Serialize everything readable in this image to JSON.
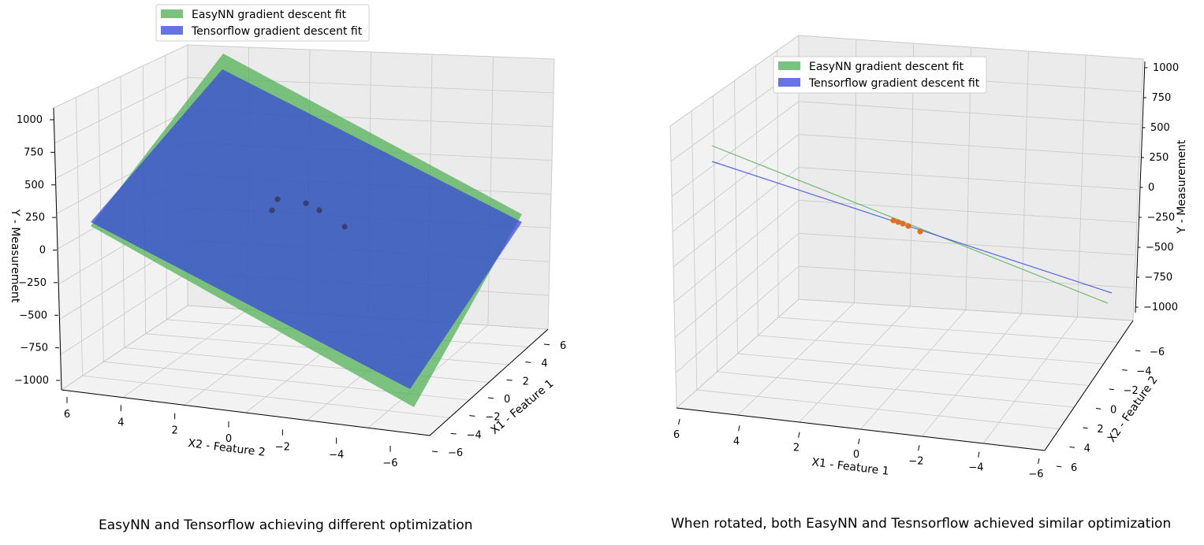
{
  "chart_data": [
    {
      "type": "surface3d",
      "title": "",
      "xlabel": "X1 - Feature 1",
      "ylabel": "X2 - Feature 2",
      "zlabel": "Y - Measurement",
      "xlim": [
        -6,
        6
      ],
      "ylim": [
        -6,
        6
      ],
      "zlim": [
        -1000,
        1000
      ],
      "x_ticks": [
        "6",
        "4",
        "2",
        "0",
        "−2",
        "−4",
        "−6"
      ],
      "y_ticks": [
        "6",
        "4",
        "2",
        "0",
        "−2",
        "−4",
        "−6"
      ],
      "z_ticks": [
        "1000",
        "750",
        "500",
        "250",
        "0",
        "−250",
        "−500",
        "−750",
        "−1000"
      ],
      "legend": {
        "position": "top-center",
        "entries": [
          "EasyNN gradient descent fit",
          "Tensorflow gradient descent fit"
        ]
      },
      "series": [
        {
          "name": "EasyNN gradient descent fit",
          "color": "#4caf50"
        },
        {
          "name": "Tensorflow gradient descent fit",
          "color": "#3344dd"
        }
      ],
      "points_color": "#333355",
      "caption": "EasyNN and Tensorflow achieving different optimization"
    },
    {
      "type": "surface3d",
      "title": "",
      "xlabel": "X1 - Feature 1",
      "ylabel": "X2 - Feature 2",
      "zlabel": "Y - Measurement",
      "xlim": [
        -6,
        6
      ],
      "ylim": [
        -6,
        6
      ],
      "zlim": [
        -1000,
        1000
      ],
      "x_ticks": [
        "6",
        "4",
        "2",
        "0",
        "−2",
        "−4",
        "−6"
      ],
      "y_ticks": [
        "−6",
        "−4",
        "−2",
        "0",
        "2",
        "4",
        "6"
      ],
      "z_ticks": [
        "1000",
        "750",
        "500",
        "250",
        "0",
        "−250",
        "−500",
        "−750",
        "−1000"
      ],
      "legend": {
        "position": "top-left",
        "entries": [
          "EasyNN gradient descent fit",
          "Tensorflow gradient descent fit"
        ]
      },
      "series": [
        {
          "name": "EasyNN gradient descent fit",
          "color": "#4caf50"
        },
        {
          "name": "Tensorflow gradient descent fit",
          "color": "#3344dd"
        }
      ],
      "points_color": "#e07020",
      "caption": "When rotated, both EasyNN and Tesnsorflow achieved similar optimization"
    }
  ]
}
